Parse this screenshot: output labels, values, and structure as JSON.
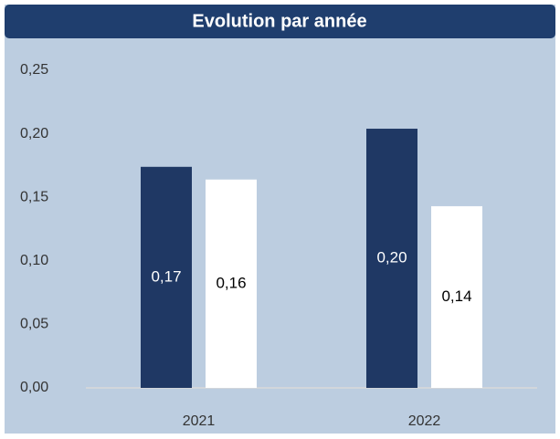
{
  "chart_data": {
    "type": "bar",
    "title": "Evolution par année",
    "categories": [
      "2021",
      "2022"
    ],
    "series": [
      {
        "color": "#1f3864",
        "values": [
          0.174,
          0.204
        ],
        "value_labels": [
          "0,17",
          "0,20"
        ]
      },
      {
        "color": "#ffffff",
        "values": [
          0.164,
          0.143
        ],
        "value_labels": [
          "0,16",
          "0,14"
        ]
      }
    ],
    "ylim": [
      0,
      0.25
    ],
    "yticks": [
      {
        "value": 0,
        "label": "0,00"
      },
      {
        "value": 0.05,
        "label": "0,05"
      },
      {
        "value": 0.1,
        "label": "0,10"
      },
      {
        "value": 0.15,
        "label": "0,15"
      },
      {
        "value": 0.2,
        "label": "0,20"
      },
      {
        "value": 0.25,
        "label": "0,25"
      }
    ],
    "grid": false
  }
}
